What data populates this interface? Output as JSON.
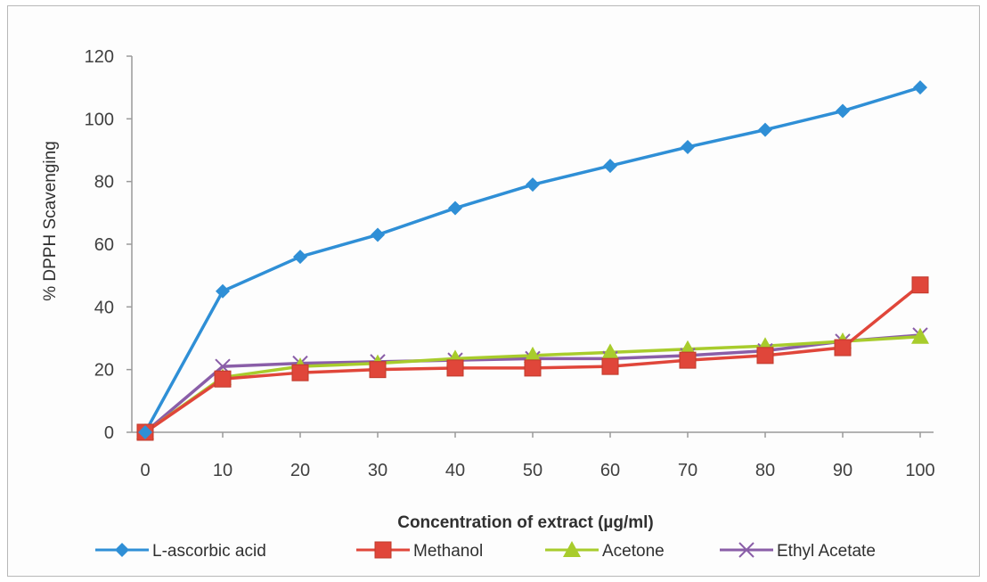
{
  "chart_data": {
    "type": "line",
    "title": "",
    "xlabel": "Concentration of extract (µg/ml)",
    "ylabel": "% DPPH Scavenging",
    "x": [
      0,
      10,
      20,
      30,
      40,
      50,
      60,
      70,
      80,
      90,
      100
    ],
    "x_ticks": [
      "0",
      "10",
      "20",
      "30",
      "40",
      "50",
      "60",
      "70",
      "80",
      "90",
      "100"
    ],
    "y_ticks": [
      "0",
      "20",
      "40",
      "60",
      "80",
      "100",
      "120"
    ],
    "ylim": [
      0,
      120
    ],
    "grid": false,
    "legend_position": "bottom",
    "series": [
      {
        "name": "L-ascorbic acid",
        "marker": "diamond",
        "color": "#2f8fd6",
        "values": [
          0,
          45,
          56,
          63,
          71.5,
          79,
          85,
          91,
          96.5,
          102.5,
          110
        ]
      },
      {
        "name": "Methanol",
        "marker": "square",
        "color": "#e0463a",
        "values": [
          0,
          17,
          19,
          20,
          20.5,
          20.5,
          21,
          23,
          24.5,
          27,
          47
        ]
      },
      {
        "name": "Acetone",
        "marker": "triangle",
        "color": "#a8cc2c",
        "values": [
          0,
          17.5,
          21,
          22,
          23.5,
          24.5,
          25.5,
          26.5,
          27.5,
          29,
          30.5
        ]
      },
      {
        "name": "Ethyl Acetate",
        "marker": "x",
        "color": "#8a5ea8",
        "values": [
          0,
          21,
          22,
          22.5,
          23,
          23.5,
          23.5,
          24.5,
          26,
          29,
          31
        ]
      }
    ]
  }
}
